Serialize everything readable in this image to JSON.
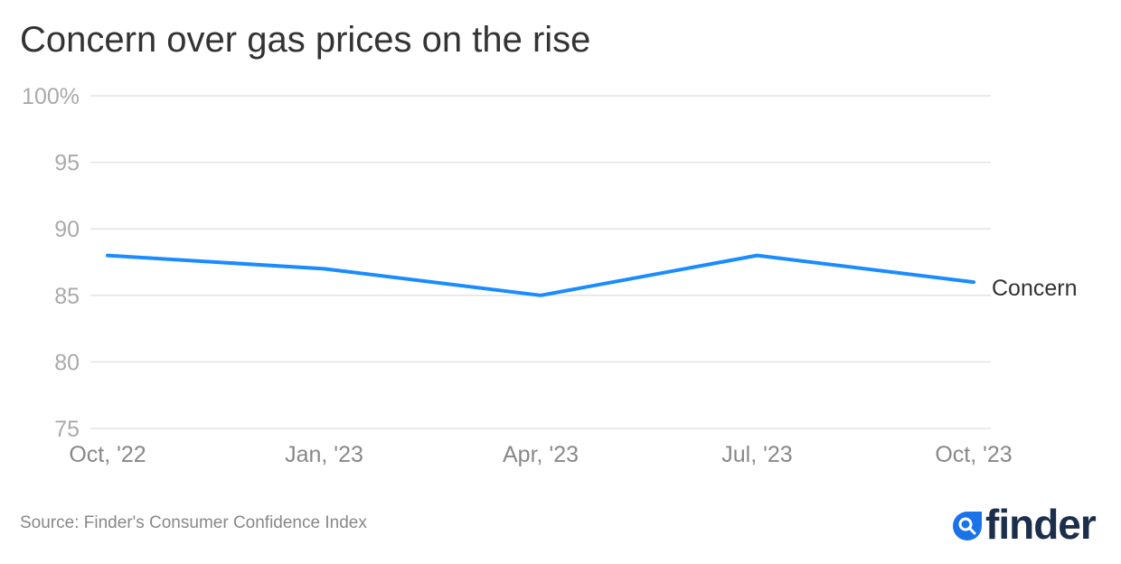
{
  "chart_data": {
    "type": "line",
    "title": "Concern over gas prices on the rise",
    "categories": [
      "Oct, '22",
      "Jan, '23",
      "Apr, '23",
      "Jul, '23",
      "Oct, '23"
    ],
    "series": [
      {
        "name": "Concern",
        "values": [
          88,
          87,
          85,
          88,
          86
        ],
        "color": "#1a8cff"
      }
    ],
    "ylim": [
      75,
      100
    ],
    "yticks": [
      {
        "value": 100,
        "label": "100%"
      },
      {
        "value": 95,
        "label": "95"
      },
      {
        "value": 90,
        "label": "90"
      },
      {
        "value": 85,
        "label": "85"
      },
      {
        "value": 80,
        "label": "80"
      },
      {
        "value": 75,
        "label": "75"
      }
    ],
    "grid": true,
    "xlabel": "",
    "ylabel": "",
    "legend": "inline-right"
  },
  "source": "Source: Finder's Consumer Confidence Index",
  "logo": {
    "text": "finder",
    "colors": {
      "icon": "#1a73e8",
      "text": "#1b2e4b"
    }
  }
}
